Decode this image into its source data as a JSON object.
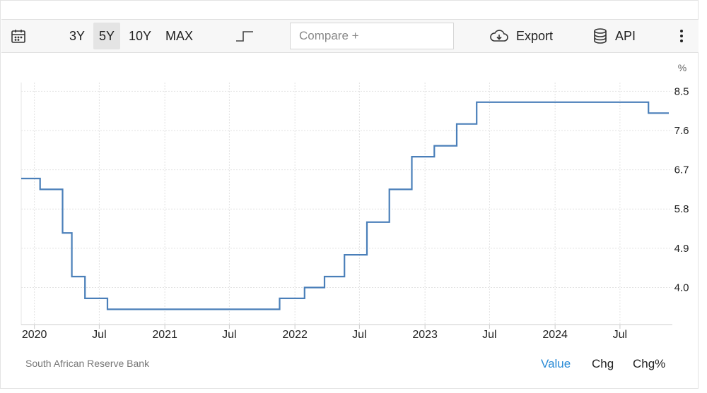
{
  "toolbar": {
    "ranges": [
      "3Y",
      "5Y",
      "10Y",
      "MAX"
    ],
    "active_range": "5Y",
    "compare_placeholder": "Compare +",
    "export_label": "Export",
    "api_label": "API",
    "icons": [
      "calendar-icon",
      "step-line-icon",
      "cloud-download-icon",
      "database-icon",
      "more-vertical-icon"
    ]
  },
  "chart_data": {
    "type": "line",
    "step": true,
    "unit_label": "%",
    "x_ticks": [
      "2020",
      "Jul",
      "2021",
      "Jul",
      "2022",
      "Jul",
      "2023",
      "Jul",
      "2024",
      "Jul"
    ],
    "y_ticks": [
      "8.5",
      "7.6",
      "6.7",
      "5.8",
      "4.9",
      "4.0"
    ],
    "ylim": [
      3.15,
      8.7
    ],
    "xlim": [
      "2019-11-25",
      "2024-11-25"
    ],
    "y_axis_position": "right",
    "grid": true,
    "series": [
      {
        "color": "#4a7fb9",
        "points": [
          [
            "2019-11-25",
            6.5
          ],
          [
            "2020-01-17",
            6.25
          ],
          [
            "2020-03-20",
            5.25
          ],
          [
            "2020-04-15",
            4.25
          ],
          [
            "2020-05-22",
            3.75
          ],
          [
            "2020-07-24",
            3.5
          ],
          [
            "2021-11-19",
            3.75
          ],
          [
            "2022-01-28",
            4.0
          ],
          [
            "2022-03-25",
            4.25
          ],
          [
            "2022-05-20",
            4.75
          ],
          [
            "2022-07-22",
            5.5
          ],
          [
            "2022-09-23",
            6.25
          ],
          [
            "2022-11-25",
            7.0
          ],
          [
            "2023-01-27",
            7.25
          ],
          [
            "2023-03-31",
            7.75
          ],
          [
            "2023-05-26",
            8.25
          ],
          [
            "2024-09-19",
            8.0
          ],
          [
            "2024-11-15",
            8.0
          ]
        ]
      }
    ]
  },
  "footer": {
    "source": "South African Reserve Bank",
    "tabs": [
      "Value",
      "Chg",
      "Chg%"
    ],
    "active_tab": "Value"
  }
}
